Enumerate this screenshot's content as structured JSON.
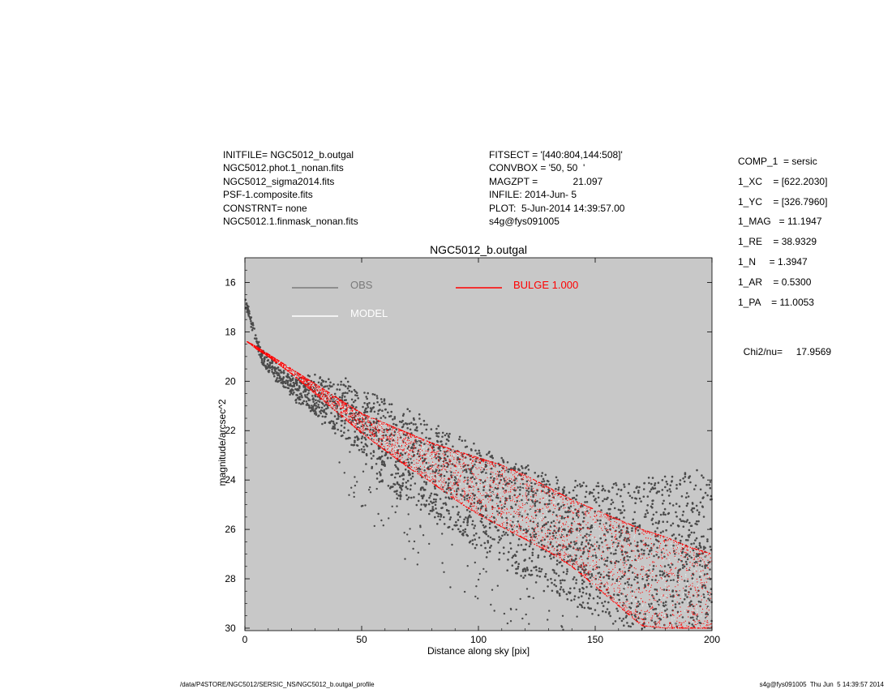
{
  "header": {
    "left": [
      "INITFILE= NGC5012_b.outgal",
      "NGC5012.phot.1_nonan.fits",
      "NGC5012_sigma2014.fits",
      "PSF-1.composite.fits",
      "CONSTRNT= none",
      "NGC5012.1.finmask_nonan.fits"
    ],
    "middle": [
      "FITSECT = '[440:804,144:508]'",
      "CONVBOX = '50, 50  '",
      "MAGZPT =             21.097",
      "INFILE: 2014-Jun- 5",
      "PLOT:  5-Jun-2014 14:39:57.00",
      "s4g@fys091005"
    ]
  },
  "params": [
    "COMP_1  = sersic",
    "1_XC    = [622.2030]",
    "1_YC    = [326.7960]",
    "1_MAG   = 11.1947",
    "1_RE    = 38.9329",
    "1_N     = 1.3947",
    "1_AR    = 0.5300",
    "1_PA    = 11.0053"
  ],
  "chi2_label": "Chi2/nu=",
  "chi2_value": "17.9569",
  "footer": {
    "path": "/data/P4STORE/NGC5012/SERSIC_NS/NGC5012_b.outgal_profile",
    "stamp": "s4g@fys091005  Thu Jun  5 14:39:57 2014"
  },
  "colors": {
    "plot_bg": "#c8c8c8",
    "obs": "#4a4a4a",
    "model": "#ffffff",
    "bulge": "#ff0000"
  },
  "chart_data": {
    "type": "scatter",
    "title": "NGC5012_b.outgal",
    "xlabel": "Distance along sky [pix]",
    "ylabel": "magnitude/arcsec^2",
    "xlim": [
      0,
      200
    ],
    "ylim": [
      30.1,
      15.0
    ],
    "y_inverted": true,
    "xticks": [
      0,
      50,
      100,
      150,
      200
    ],
    "yticks": [
      16,
      18,
      20,
      22,
      24,
      26,
      28,
      30
    ],
    "grid": false,
    "legend": [
      {
        "label": "OBS",
        "color": "#7a7a7a"
      },
      {
        "label": "MODEL",
        "color": "#ffffff"
      },
      {
        "label": "BULGE  1.000",
        "color": "#ff0000"
      }
    ],
    "series": [
      {
        "name": "OBS",
        "x": [
          0.5,
          2,
          4,
          6,
          8,
          10,
          15,
          20,
          25,
          30,
          40,
          50,
          60,
          70,
          80,
          90,
          100,
          110,
          120,
          130,
          140,
          150,
          160,
          170,
          180,
          190,
          200
        ],
        "y_bright": [
          16.85,
          17.2,
          17.9,
          18.5,
          18.9,
          19.1,
          19.4,
          19.8,
          19.85,
          19.85,
          19.9,
          20.3,
          20.75,
          21.2,
          21.7,
          22.1,
          22.6,
          23.1,
          23.5,
          23.9,
          24.1,
          24.2,
          24.1,
          24.0,
          23.9,
          23.7,
          23.6
        ],
        "y_faint": [
          17.0,
          17.5,
          18.3,
          18.9,
          19.3,
          19.6,
          20.1,
          20.6,
          21.0,
          21.4,
          22.1,
          23.0,
          24.3,
          25.0,
          25.6,
          26.2,
          26.8,
          27.4,
          28.0,
          28.5,
          29.0,
          29.5,
          29.9,
          30.0,
          30.0,
          30.0,
          30.0
        ]
      },
      {
        "name": "BULGE  1.000",
        "x": [
          1,
          5,
          10,
          20,
          30,
          40,
          50,
          60,
          70,
          80,
          90,
          100,
          110,
          120,
          130,
          140,
          150,
          160,
          170,
          180,
          190,
          200
        ],
        "y_bright": [
          18.4,
          18.6,
          18.9,
          19.5,
          20.1,
          20.7,
          21.3,
          21.7,
          22.1,
          22.5,
          22.8,
          23.1,
          23.4,
          23.8,
          24.3,
          24.8,
          25.2,
          25.6,
          26.0,
          26.3,
          26.7,
          27.0
        ],
        "y_faint": [
          18.4,
          18.7,
          19.0,
          19.7,
          20.5,
          21.3,
          22.1,
          22.8,
          23.5,
          24.1,
          24.8,
          25.4,
          25.9,
          26.4,
          26.9,
          27.5,
          28.3,
          29.1,
          29.9,
          30.0,
          30.0,
          30.0
        ]
      }
    ]
  }
}
